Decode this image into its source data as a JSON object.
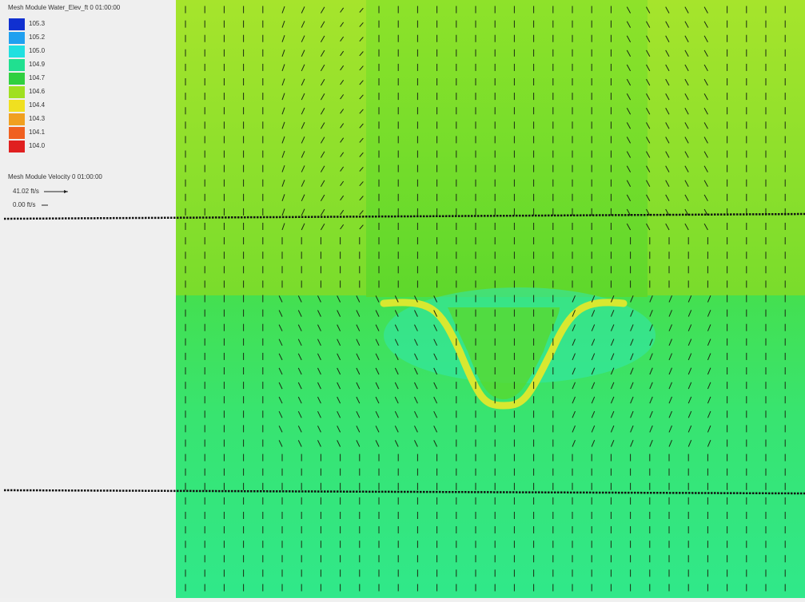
{
  "legend": {
    "title": "Mesh Module Water_Elev_ft 0 01:00:00",
    "entries": [
      {
        "label": "105.3",
        "color": "#1030d0"
      },
      {
        "label": "105.2",
        "color": "#20a0f0"
      },
      {
        "label": "105.0",
        "color": "#20e0e0"
      },
      {
        "label": "104.9",
        "color": "#20e090"
      },
      {
        "label": "104.7",
        "color": "#30d040"
      },
      {
        "label": "104.6",
        "color": "#a0e020"
      },
      {
        "label": "104.4",
        "color": "#f0e020"
      },
      {
        "label": "104.3",
        "color": "#f0a020"
      },
      {
        "label": "104.1",
        "color": "#f06020"
      },
      {
        "label": "104.0",
        "color": "#e02020"
      }
    ]
  },
  "velocity_legend": {
    "title": "Mesh Module Velocity 0 01:00:00",
    "max_label": "41.02 ft/s",
    "min_label": "0.00 ft/s"
  }
}
